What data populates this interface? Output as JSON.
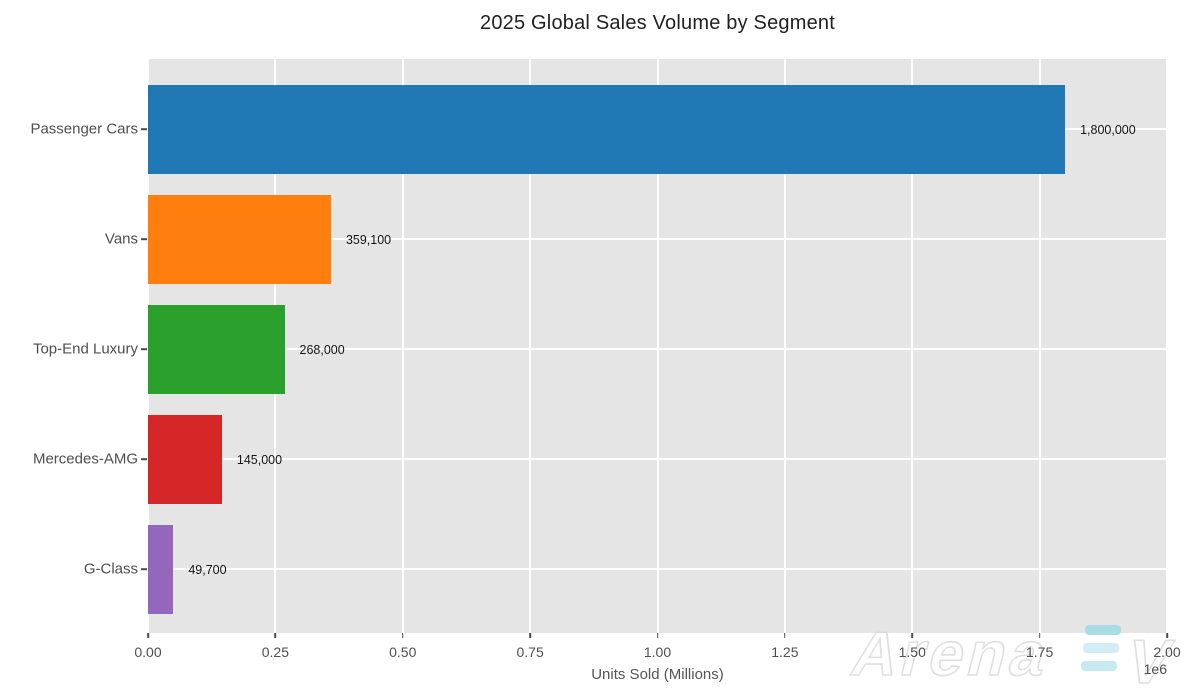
{
  "chart_data": {
    "type": "bar",
    "orientation": "horizontal",
    "title": "2025 Global Sales Volume by Segment",
    "xlabel": "Units Sold (Millions)",
    "ylabel": "",
    "categories": [
      "Passenger Cars",
      "Vans",
      "Top-End Luxury",
      "Mercedes-AMG",
      "G-Class"
    ],
    "values": [
      1800000,
      359100,
      268000,
      145000,
      49700
    ],
    "value_labels": [
      "1,800,000",
      "359,100",
      "268,000",
      "145,000",
      "49,700"
    ],
    "bar_colors": [
      "#1f77b4",
      "#ff7f0e",
      "#2ca02c",
      "#d62728",
      "#9467bd"
    ],
    "xlim": [
      0,
      2000000
    ],
    "x_tick_values": [
      0,
      250000,
      500000,
      750000,
      1000000,
      1250000,
      1500000,
      1750000,
      2000000
    ],
    "x_tick_labels": [
      "0.00",
      "0.25",
      "0.50",
      "0.75",
      "1.00",
      "1.25",
      "1.50",
      "1.75",
      "2.00"
    ],
    "x_offset_label": "1e6",
    "grid": true,
    "legend": false,
    "plot_background": "#e5e5e5",
    "grid_color": "#ffffff"
  },
  "watermark": {
    "text_main": "Arena",
    "text_suffix": "V",
    "outline_color": "#dcdcdc",
    "bar_colors": [
      "#a9dde6",
      "#d2eef4",
      "#c6eaf0"
    ]
  }
}
